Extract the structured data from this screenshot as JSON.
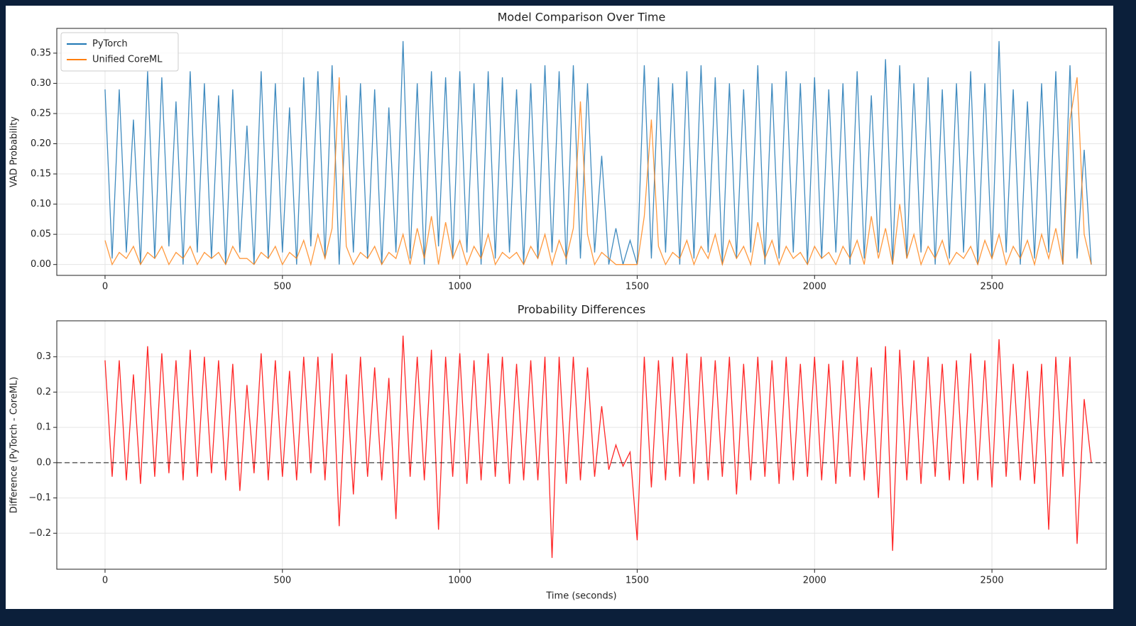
{
  "chart_data": [
    {
      "type": "line",
      "title": "Model Comparison Over Time",
      "ylabel": "VAD Probability",
      "x": [
        0,
        20,
        40,
        60,
        80,
        100,
        120,
        140,
        160,
        180,
        200,
        220,
        240,
        260,
        280,
        300,
        320,
        340,
        360,
        380,
        400,
        420,
        440,
        460,
        480,
        500,
        520,
        540,
        560,
        580,
        600,
        620,
        640,
        660,
        680,
        700,
        720,
        740,
        760,
        780,
        800,
        820,
        840,
        860,
        880,
        900,
        920,
        940,
        960,
        980,
        1000,
        1020,
        1040,
        1060,
        1080,
        1100,
        1120,
        1140,
        1160,
        1180,
        1200,
        1220,
        1240,
        1260,
        1280,
        1300,
        1320,
        1340,
        1360,
        1380,
        1400,
        1420,
        1440,
        1460,
        1480,
        1500,
        1520,
        1540,
        1560,
        1580,
        1600,
        1620,
        1640,
        1660,
        1680,
        1700,
        1720,
        1740,
        1760,
        1780,
        1800,
        1820,
        1840,
        1860,
        1880,
        1900,
        1920,
        1940,
        1960,
        1980,
        2000,
        2020,
        2040,
        2060,
        2080,
        2100,
        2120,
        2140,
        2160,
        2180,
        2200,
        2220,
        2240,
        2260,
        2280,
        2300,
        2320,
        2340,
        2360,
        2380,
        2400,
        2420,
        2440,
        2460,
        2480,
        2500,
        2520,
        2540,
        2560,
        2580,
        2600,
        2620,
        2640,
        2660,
        2680,
        2700,
        2720,
        2740,
        2760,
        2780
      ],
      "series": [
        {
          "name": "PyTorch",
          "color": "#1f77b4",
          "values": [
            0.29,
            0.01,
            0.29,
            0.02,
            0.24,
            0.0,
            0.32,
            0.01,
            0.31,
            0.03,
            0.27,
            0.0,
            0.32,
            0.02,
            0.3,
            0.01,
            0.28,
            0.0,
            0.29,
            0.02,
            0.23,
            0.0,
            0.32,
            0.01,
            0.3,
            0.02,
            0.26,
            0.0,
            0.31,
            0.03,
            0.32,
            0.01,
            0.33,
            0.0,
            0.28,
            0.02,
            0.3,
            0.01,
            0.29,
            0.0,
            0.26,
            0.02,
            0.37,
            0.01,
            0.3,
            0.0,
            0.32,
            0.03,
            0.31,
            0.01,
            0.32,
            0.02,
            0.3,
            0.0,
            0.32,
            0.01,
            0.31,
            0.02,
            0.29,
            0.0,
            0.3,
            0.01,
            0.33,
            0.02,
            0.32,
            0.0,
            0.33,
            0.01,
            0.3,
            0.02,
            0.18,
            0.0,
            0.06,
            0.0,
            0.04,
            0.0,
            0.33,
            0.01,
            0.31,
            0.02,
            0.3,
            0.0,
            0.32,
            0.01,
            0.33,
            0.02,
            0.31,
            0.0,
            0.3,
            0.01,
            0.29,
            0.02,
            0.33,
            0.0,
            0.3,
            0.01,
            0.32,
            0.02,
            0.3,
            0.0,
            0.31,
            0.01,
            0.29,
            0.02,
            0.3,
            0.0,
            0.32,
            0.01,
            0.28,
            0.02,
            0.34,
            0.0,
            0.33,
            0.01,
            0.3,
            0.02,
            0.31,
            0.0,
            0.29,
            0.01,
            0.3,
            0.02,
            0.32,
            0.0,
            0.3,
            0.01,
            0.37,
            0.02,
            0.29,
            0.0,
            0.27,
            0.01,
            0.3,
            0.02,
            0.32,
            0.0,
            0.33,
            0.01,
            0.19,
            0.0
          ]
        },
        {
          "name": "Unified CoreML",
          "color": "#ff7f0e",
          "values": [
            0.04,
            0.0,
            0.02,
            0.01,
            0.03,
            0.0,
            0.02,
            0.01,
            0.03,
            0.0,
            0.02,
            0.01,
            0.03,
            0.0,
            0.02,
            0.01,
            0.02,
            0.0,
            0.03,
            0.01,
            0.01,
            0.0,
            0.02,
            0.01,
            0.03,
            0.0,
            0.02,
            0.01,
            0.04,
            0.0,
            0.05,
            0.01,
            0.06,
            0.31,
            0.03,
            0.0,
            0.02,
            0.01,
            0.03,
            0.0,
            0.02,
            0.01,
            0.05,
            0.0,
            0.06,
            0.01,
            0.08,
            0.0,
            0.07,
            0.01,
            0.04,
            0.0,
            0.03,
            0.01,
            0.05,
            0.0,
            0.02,
            0.01,
            0.02,
            0.0,
            0.03,
            0.01,
            0.05,
            0.0,
            0.04,
            0.01,
            0.06,
            0.27,
            0.05,
            0.0,
            0.02,
            0.01,
            0.0,
            0.0,
            0.0,
            0.0,
            0.08,
            0.24,
            0.03,
            0.0,
            0.02,
            0.01,
            0.04,
            0.0,
            0.03,
            0.01,
            0.05,
            0.0,
            0.04,
            0.01,
            0.03,
            0.0,
            0.07,
            0.01,
            0.04,
            0.0,
            0.03,
            0.01,
            0.02,
            0.0,
            0.03,
            0.01,
            0.02,
            0.0,
            0.03,
            0.01,
            0.04,
            0.0,
            0.08,
            0.01,
            0.06,
            0.0,
            0.1,
            0.01,
            0.05,
            0.0,
            0.03,
            0.01,
            0.04,
            0.0,
            0.02,
            0.01,
            0.03,
            0.0,
            0.04,
            0.01,
            0.05,
            0.0,
            0.03,
            0.01,
            0.04,
            0.0,
            0.05,
            0.01,
            0.06,
            0.0,
            0.24,
            0.31,
            0.05,
            0.0
          ]
        }
      ],
      "xlim": [
        -136,
        2822
      ],
      "ylim": [
        -0.018,
        0.391
      ],
      "xticks": [
        0,
        500,
        1000,
        1500,
        2000,
        2500
      ],
      "yticks": [
        {
          "value": 0,
          "label": "0.00"
        },
        0.05,
        {
          "value": 0.1,
          "label": "0.10"
        },
        0.15,
        {
          "value": 0.2,
          "label": "0.20"
        },
        0.25,
        {
          "value": 0.3,
          "label": "0.30"
        },
        0.35
      ],
      "grid": true,
      "legend": "upper left"
    },
    {
      "type": "line",
      "title": "Probability Differences",
      "ylabel": "Difference (PyTorch - CoreML)",
      "xlabel": "Time (seconds)",
      "x": [
        0,
        20,
        40,
        60,
        80,
        100,
        120,
        140,
        160,
        180,
        200,
        220,
        240,
        260,
        280,
        300,
        320,
        340,
        360,
        380,
        400,
        420,
        440,
        460,
        480,
        500,
        520,
        540,
        560,
        580,
        600,
        620,
        640,
        660,
        680,
        700,
        720,
        740,
        760,
        780,
        800,
        820,
        840,
        860,
        880,
        900,
        920,
        940,
        960,
        980,
        1000,
        1020,
        1040,
        1060,
        1080,
        1100,
        1120,
        1140,
        1160,
        1180,
        1200,
        1220,
        1240,
        1260,
        1280,
        1300,
        1320,
        1340,
        1360,
        1380,
        1400,
        1420,
        1440,
        1460,
        1480,
        1500,
        1520,
        1540,
        1560,
        1580,
        1600,
        1620,
        1640,
        1660,
        1680,
        1700,
        1720,
        1740,
        1760,
        1780,
        1800,
        1820,
        1840,
        1860,
        1880,
        1900,
        1920,
        1940,
        1960,
        1980,
        2000,
        2020,
        2040,
        2060,
        2080,
        2100,
        2120,
        2140,
        2160,
        2180,
        2200,
        2220,
        2240,
        2260,
        2280,
        2300,
        2320,
        2340,
        2360,
        2380,
        2400,
        2420,
        2440,
        2460,
        2480,
        2500,
        2520,
        2540,
        2560,
        2580,
        2600,
        2620,
        2640,
        2660,
        2680,
        2700,
        2720,
        2740,
        2760,
        2780
      ],
      "series": [
        {
          "color": "#ff0000",
          "values": [
            0.29,
            -0.04,
            0.29,
            -0.05,
            0.25,
            -0.06,
            0.33,
            -0.04,
            0.31,
            -0.03,
            0.29,
            -0.05,
            0.32,
            -0.04,
            0.3,
            -0.03,
            0.29,
            -0.05,
            0.28,
            -0.08,
            0.22,
            -0.03,
            0.31,
            -0.05,
            0.29,
            -0.04,
            0.26,
            -0.05,
            0.3,
            -0.03,
            0.3,
            -0.05,
            0.31,
            -0.18,
            0.25,
            -0.09,
            0.3,
            -0.04,
            0.27,
            -0.05,
            0.24,
            -0.16,
            0.36,
            -0.04,
            0.3,
            -0.05,
            0.32,
            -0.19,
            0.3,
            -0.04,
            0.31,
            -0.06,
            0.29,
            -0.05,
            0.31,
            -0.04,
            0.3,
            -0.06,
            0.28,
            -0.05,
            0.29,
            -0.05,
            0.3,
            -0.27,
            0.3,
            -0.06,
            0.3,
            -0.05,
            0.27,
            -0.04,
            0.16,
            -0.02,
            0.05,
            -0.01,
            0.03,
            -0.22,
            0.3,
            -0.07,
            0.29,
            -0.05,
            0.3,
            -0.04,
            0.31,
            -0.06,
            0.3,
            -0.05,
            0.29,
            -0.04,
            0.3,
            -0.09,
            0.28,
            -0.05,
            0.3,
            -0.04,
            0.29,
            -0.06,
            0.3,
            -0.05,
            0.28,
            -0.04,
            0.3,
            -0.05,
            0.28,
            -0.06,
            0.29,
            -0.04,
            0.3,
            -0.05,
            0.27,
            -0.1,
            0.33,
            -0.25,
            0.32,
            -0.05,
            0.29,
            -0.06,
            0.3,
            -0.04,
            0.28,
            -0.05,
            0.29,
            -0.06,
            0.31,
            -0.05,
            0.29,
            -0.07,
            0.35,
            -0.04,
            0.28,
            -0.05,
            0.26,
            -0.06,
            0.28,
            -0.19,
            0.3,
            -0.04,
            0.3,
            -0.23,
            0.18,
            0.0
          ]
        }
      ],
      "hline": 0,
      "xlim": [
        -136,
        2822
      ],
      "ylim": [
        -0.302,
        0.402
      ],
      "xticks": [
        0,
        500,
        1000,
        1500,
        2000,
        2500
      ],
      "yticks": [
        {
          "value": -0.2,
          "label": "−0.2"
        },
        {
          "value": -0.1,
          "label": "−0.1"
        },
        {
          "value": 0,
          "label": "0.0"
        },
        0.1,
        0.2,
        0.3
      ],
      "grid": true
    }
  ]
}
